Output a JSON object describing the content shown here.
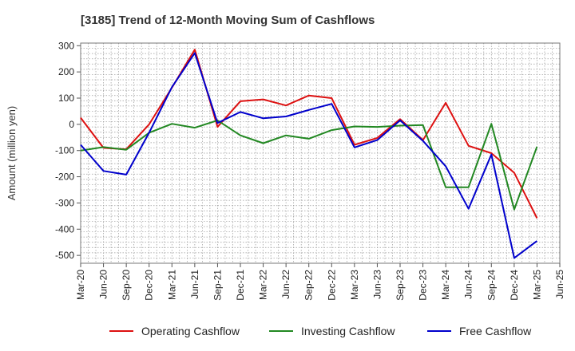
{
  "chart_data": {
    "type": "line",
    "title": "[3185]  Trend of 12-Month Moving Sum of Cashflows",
    "ylabel": "Amount (million yen)",
    "xlabel": "",
    "ylim": [
      -530,
      310
    ],
    "yticks": [
      300,
      200,
      100,
      0,
      -100,
      -200,
      -300,
      -400,
      -500
    ],
    "x": [
      "Mar-20",
      "Jun-20",
      "Sep-20",
      "Dec-20",
      "Mar-21",
      "Jun-21",
      "Sep-21",
      "Dec-21",
      "Mar-22",
      "Jun-22",
      "Sep-22",
      "Dec-22",
      "Mar-23",
      "Jun-23",
      "Sep-23",
      "Dec-23",
      "Mar-24",
      "Jun-24",
      "Sep-24",
      "Dec-24",
      "Mar-25",
      "Jun-25"
    ],
    "grid": true,
    "legend_position": "bottom",
    "series": [
      {
        "name": "Operating Cashflow",
        "color": "#dd1111",
        "values": [
          25,
          -90,
          -95,
          0,
          140,
          285,
          -10,
          88,
          95,
          72,
          110,
          100,
          -78,
          -52,
          20,
          -60,
          82,
          -82,
          -110,
          -185,
          -358,
          null
        ]
      },
      {
        "name": "Investing Cashflow",
        "color": "#228822",
        "values": [
          -100,
          -87,
          -97,
          -32,
          2,
          -13,
          15,
          -42,
          -72,
          -42,
          -55,
          -22,
          -8,
          -10,
          -5,
          -3,
          -240,
          -240,
          2,
          -325,
          -85,
          null
        ]
      },
      {
        "name": "Free Cashflow",
        "color": "#0000cc",
        "values": [
          -78,
          -178,
          -192,
          -32,
          142,
          272,
          5,
          47,
          23,
          30,
          55,
          78,
          -88,
          -60,
          15,
          -63,
          -160,
          -322,
          -115,
          -510,
          -445,
          null
        ]
      }
    ]
  }
}
